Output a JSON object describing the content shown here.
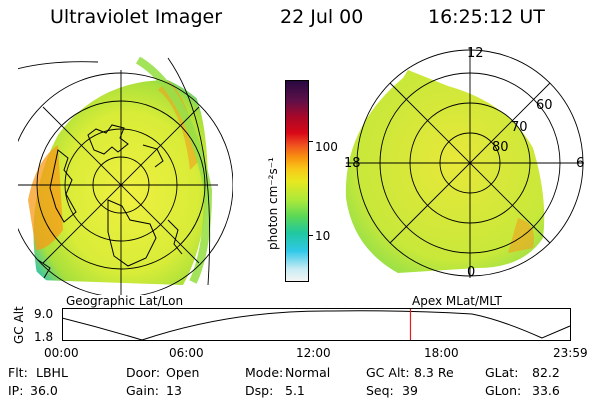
{
  "header": {
    "instrument": "Ultraviolet Imager",
    "date": "22 Jul 00",
    "time": "16:25:12 UT"
  },
  "colorbar": {
    "unit_label": "photon cm⁻²s⁻¹",
    "ticks": [
      {
        "label": "100",
        "value": 100
      },
      {
        "label": "10",
        "value": 10
      }
    ],
    "colors": [
      "#f4f4f4",
      "#c8ecf4",
      "#30c8e8",
      "#20c8a0",
      "#58d858",
      "#a8e83c",
      "#e8e820",
      "#f8c818",
      "#f89010",
      "#f05020",
      "#d80818",
      "#a80828",
      "#601048",
      "#280840"
    ]
  },
  "left_panel": {
    "label": "Geographic Lat/Lon"
  },
  "right_panel": {
    "label": "Apex MLat/MLT",
    "mlt_labels": {
      "top": "12",
      "left": "18",
      "right": "6",
      "bottom": "0"
    },
    "lat_labels": [
      "60",
      "70",
      "80"
    ]
  },
  "timeline": {
    "ylabel": "GC Alt",
    "ytick_top": "9.0",
    "ytick_bottom": "1.8",
    "xticks": [
      "00:00",
      "06:00",
      "12:00",
      "18:00",
      "23:59"
    ],
    "current_time_fraction": 0.685,
    "marker_color": "#e02020"
  },
  "status": {
    "row1": [
      {
        "key": "Flt:",
        "value": "LBHL"
      },
      {
        "key": "Door:",
        "value": "Open"
      },
      {
        "key": "Mode:",
        "value": "Normal"
      },
      {
        "key": "GC Alt:",
        "value": "8.3 Re"
      },
      {
        "key": "GLat:",
        "value": "82.2"
      }
    ],
    "row2": [
      {
        "key": "IP:",
        "value": "36.0"
      },
      {
        "key": "Gain:",
        "value": "13"
      },
      {
        "key": "Dsp:",
        "value": "5.1"
      },
      {
        "key": "Seq:",
        "value": "39"
      },
      {
        "key": "GLon:",
        "value": "33.6"
      }
    ]
  }
}
